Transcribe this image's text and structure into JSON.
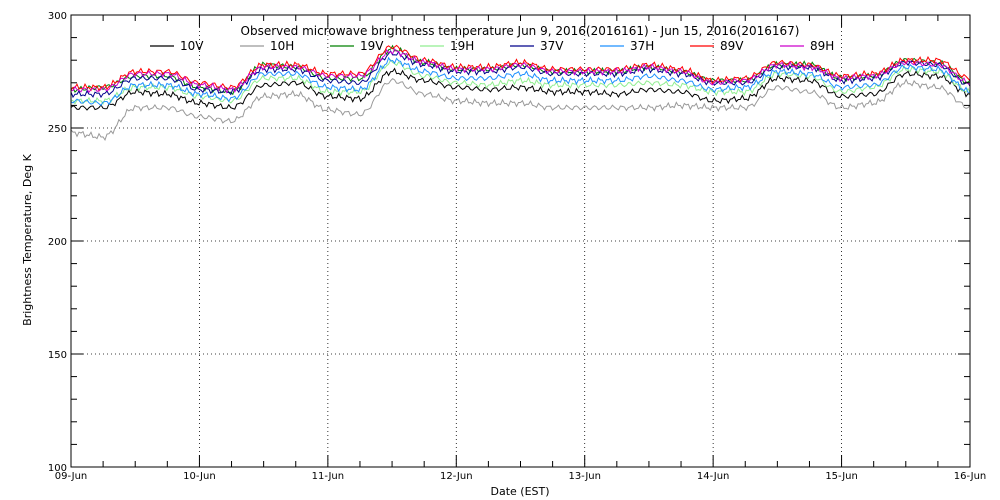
{
  "chart_data": {
    "type": "line",
    "title": "Observed microwave brightness temperature Jun  9, 2016(2016161) - Jun 15, 2016(2016167)",
    "xlabel": "Date (EST)",
    "ylabel": "Brightness Temperature, Deg K",
    "ylim": [
      100,
      300
    ],
    "xlim": [
      "2016-06-09",
      "2016-06-16"
    ],
    "x_ticks": [
      "09-Jun",
      "10-Jun",
      "11-Jun",
      "12-Jun",
      "13-Jun",
      "14-Jun",
      "15-Jun",
      "16-Jun"
    ],
    "y_ticks": [
      "100",
      "150",
      "200",
      "250",
      "300"
    ],
    "grid": "dotted",
    "legend_placement": "top",
    "x": [
      "2016-06-09 00:00",
      "2016-06-09 06:00",
      "2016-06-09 12:00",
      "2016-06-09 18:00",
      "2016-06-10 00:00",
      "2016-06-10 06:00",
      "2016-06-10 12:00",
      "2016-06-10 18:00",
      "2016-06-11 00:00",
      "2016-06-11 06:00",
      "2016-06-11 12:00",
      "2016-06-11 18:00",
      "2016-06-12 00:00",
      "2016-06-12 06:00",
      "2016-06-12 12:00",
      "2016-06-12 18:00",
      "2016-06-13 00:00",
      "2016-06-13 06:00",
      "2016-06-13 12:00",
      "2016-06-13 18:00",
      "2016-06-14 00:00",
      "2016-06-14 06:00",
      "2016-06-14 12:00",
      "2016-06-14 18:00",
      "2016-06-15 00:00",
      "2016-06-15 06:00",
      "2016-06-15 12:00",
      "2016-06-15 18:00",
      "2016-06-16 00:00"
    ],
    "series": [
      {
        "name": "10V",
        "color": "#000000",
        "values": [
          259,
          259,
          266,
          265,
          261,
          259,
          269,
          270,
          264,
          263,
          275,
          271,
          268,
          267,
          268,
          266,
          266,
          265,
          267,
          266,
          262,
          263,
          272,
          271,
          264,
          265,
          274,
          273,
          265
        ]
      },
      {
        "name": "10H",
        "color": "#999999",
        "values": [
          248,
          246,
          259,
          259,
          255,
          253,
          264,
          265,
          258,
          256,
          271,
          265,
          262,
          261,
          261,
          259,
          259,
          259,
          259,
          260,
          259,
          259,
          268,
          266,
          259,
          261,
          270,
          268,
          259
        ]
      },
      {
        "name": "19V",
        "color": "#008000",
        "values": [
          267,
          268,
          273,
          273,
          268,
          266,
          278,
          277,
          272,
          272,
          285,
          279,
          276,
          276,
          278,
          275,
          275,
          275,
          277,
          275,
          271,
          271,
          278,
          278,
          272,
          273,
          280,
          279,
          270
        ]
      },
      {
        "name": "19H",
        "color": "#90EE90",
        "values": [
          262,
          262,
          268,
          268,
          264,
          262,
          272,
          272,
          266,
          266,
          279,
          273,
          270,
          269,
          271,
          269,
          269,
          269,
          270,
          269,
          266,
          266,
          274,
          273,
          266,
          268,
          276,
          275,
          266
        ]
      },
      {
        "name": "37V",
        "color": "#00008B",
        "values": [
          265,
          265,
          272,
          272,
          267,
          266,
          276,
          276,
          271,
          270,
          283,
          278,
          275,
          275,
          277,
          274,
          274,
          274,
          276,
          274,
          270,
          270,
          277,
          277,
          271,
          272,
          279,
          278,
          269
        ]
      },
      {
        "name": "37H",
        "color": "#1E90FF",
        "values": [
          262,
          261,
          269,
          269,
          265,
          263,
          274,
          274,
          268,
          267,
          280,
          275,
          272,
          272,
          274,
          271,
          271,
          271,
          273,
          271,
          267,
          268,
          275,
          274,
          268,
          269,
          277,
          276,
          266
        ]
      },
      {
        "name": "89V",
        "color": "#FF0000",
        "values": [
          268,
          268,
          275,
          275,
          270,
          268,
          278,
          278,
          274,
          274,
          286,
          280,
          277,
          277,
          279,
          276,
          276,
          276,
          278,
          276,
          271,
          272,
          279,
          278,
          273,
          274,
          280,
          280,
          272
        ]
      },
      {
        "name": "89H",
        "color": "#CC00CC",
        "values": [
          267,
          267,
          274,
          274,
          269,
          267,
          277,
          277,
          273,
          273,
          284,
          279,
          276,
          276,
          278,
          275,
          275,
          275,
          277,
          275,
          270,
          271,
          278,
          277,
          272,
          273,
          279,
          278,
          270
        ]
      }
    ]
  }
}
